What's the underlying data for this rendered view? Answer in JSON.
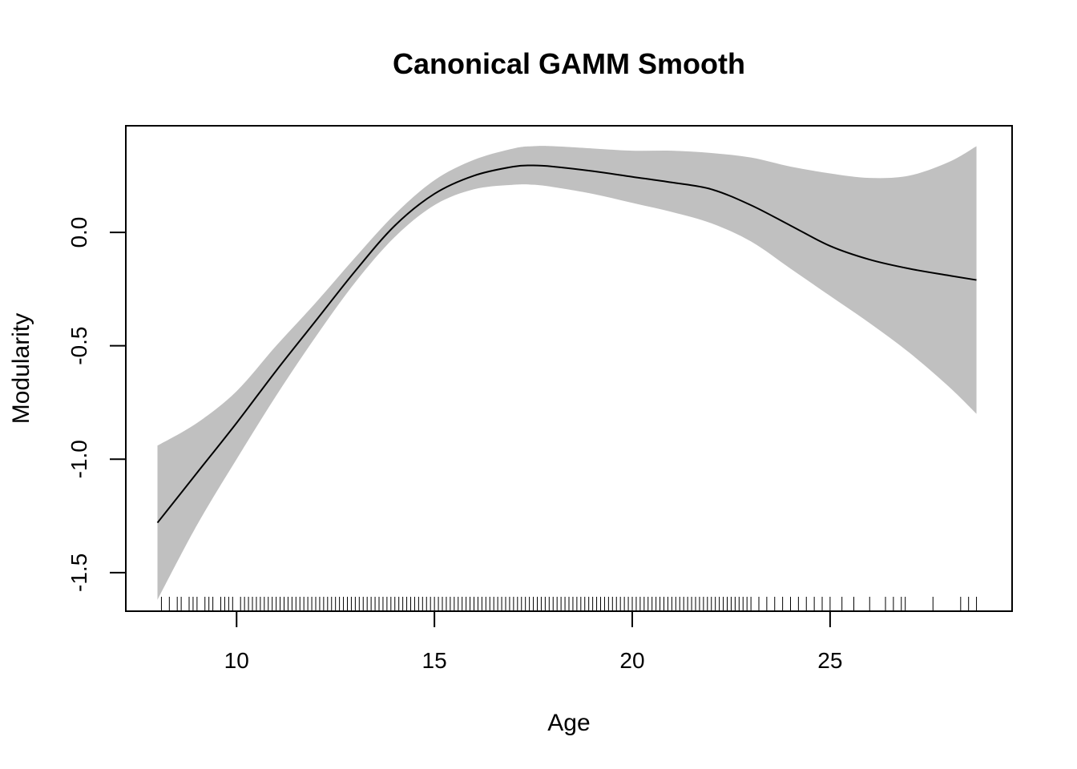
{
  "chart_data": {
    "type": "line",
    "title": "Canonical GAMM Smooth",
    "xlabel": "Age",
    "ylabel": "Modularity",
    "xlim": [
      7.2,
      29.6
    ],
    "ylim": [
      -1.67,
      0.47
    ],
    "x_ticks": [
      10,
      15,
      20,
      25
    ],
    "x_tick_labels": [
      "10",
      "15",
      "20",
      "25"
    ],
    "y_ticks": [
      0.0,
      -0.5,
      -1.0,
      -1.5
    ],
    "y_tick_labels": [
      "0.0",
      "-0.5",
      "-1.0",
      "-1.5"
    ],
    "grid": false,
    "legend": "none",
    "colors": {
      "line": "#000000",
      "band": "#c0c0c0",
      "frame": "#000000"
    },
    "series": [
      {
        "x": [
          8.0,
          9.0,
          10.0,
          11.0,
          12.0,
          13.0,
          14.0,
          15.0,
          16.0,
          17.0,
          17.5,
          18.0,
          19.0,
          20.0,
          21.0,
          22.0,
          23.0,
          24.0,
          25.0,
          26.0,
          27.0,
          28.0,
          28.7
        ],
        "y": [
          -1.28,
          -1.06,
          -0.84,
          -0.61,
          -0.39,
          -0.17,
          0.03,
          0.17,
          0.25,
          0.29,
          0.295,
          0.29,
          0.27,
          0.245,
          0.22,
          0.19,
          0.12,
          0.03,
          -0.06,
          -0.12,
          -0.16,
          -0.19,
          -0.21
        ],
        "lower": [
          -1.62,
          -1.29,
          -1.0,
          -0.72,
          -0.46,
          -0.22,
          -0.02,
          0.12,
          0.19,
          0.21,
          0.21,
          0.2,
          0.17,
          0.13,
          0.09,
          0.04,
          -0.04,
          -0.16,
          -0.28,
          -0.4,
          -0.53,
          -0.68,
          -0.8
        ],
        "upper": [
          -0.94,
          -0.84,
          -0.7,
          -0.5,
          -0.31,
          -0.11,
          0.08,
          0.23,
          0.32,
          0.37,
          0.38,
          0.38,
          0.37,
          0.36,
          0.36,
          0.35,
          0.33,
          0.29,
          0.26,
          0.24,
          0.25,
          0.31,
          0.38
        ]
      }
    ],
    "rug": [
      8.1,
      8.3,
      8.5,
      8.6,
      8.8,
      8.9,
      9.0,
      9.2,
      9.3,
      9.4,
      9.6,
      9.7,
      9.8,
      9.9,
      10.1,
      10.2,
      10.3,
      10.4,
      10.5,
      10.6,
      10.7,
      10.8,
      10.9,
      11.0,
      11.1,
      11.2,
      11.3,
      11.4,
      11.5,
      11.6,
      11.7,
      11.8,
      11.9,
      12.0,
      12.1,
      12.2,
      12.3,
      12.4,
      12.5,
      12.6,
      12.7,
      12.8,
      12.9,
      13.0,
      13.1,
      13.2,
      13.3,
      13.4,
      13.5,
      13.6,
      13.7,
      13.8,
      13.9,
      14.0,
      14.1,
      14.2,
      14.3,
      14.4,
      14.5,
      14.6,
      14.7,
      14.8,
      14.9,
      15.0,
      15.1,
      15.2,
      15.3,
      15.4,
      15.5,
      15.6,
      15.7,
      15.8,
      15.9,
      16.0,
      16.1,
      16.2,
      16.3,
      16.4,
      16.5,
      16.6,
      16.7,
      16.8,
      16.9,
      17.0,
      17.1,
      17.2,
      17.3,
      17.4,
      17.5,
      17.6,
      17.7,
      17.8,
      17.9,
      18.0,
      18.1,
      18.2,
      18.3,
      18.4,
      18.5,
      18.6,
      18.7,
      18.8,
      18.9,
      19.0,
      19.1,
      19.2,
      19.3,
      19.4,
      19.5,
      19.6,
      19.7,
      19.8,
      19.9,
      20.0,
      20.1,
      20.2,
      20.3,
      20.4,
      20.5,
      20.6,
      20.7,
      20.8,
      20.9,
      21.0,
      21.1,
      21.2,
      21.3,
      21.4,
      21.5,
      21.6,
      21.7,
      21.8,
      21.9,
      22.0,
      22.1,
      22.2,
      22.3,
      22.4,
      22.5,
      22.6,
      22.7,
      22.8,
      22.9,
      23.0,
      23.2,
      23.4,
      23.6,
      23.8,
      24.0,
      24.2,
      24.4,
      24.6,
      24.8,
      25.0,
      25.3,
      25.6,
      26.0,
      26.4,
      26.6,
      26.8,
      26.9,
      27.6,
      28.3,
      28.5,
      28.7
    ]
  }
}
